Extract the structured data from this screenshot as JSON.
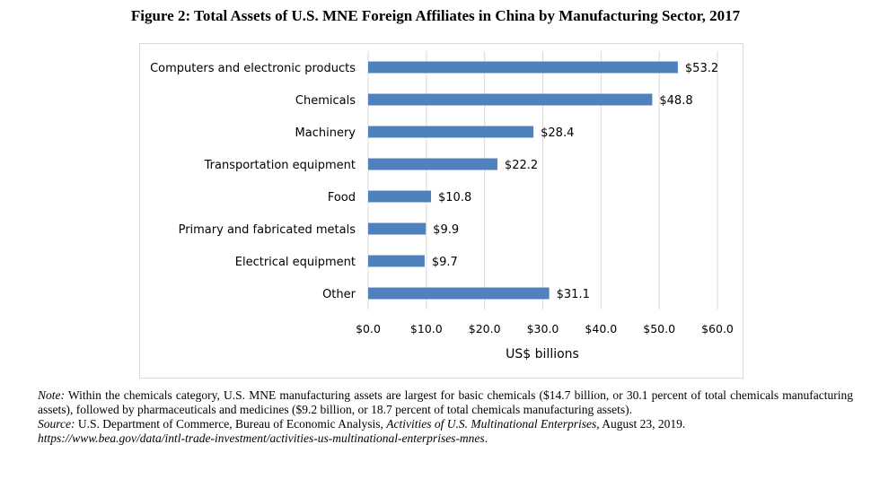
{
  "title": "Figure 2: Total Assets of U.S. MNE Foreign Affiliates in China by Manufacturing Sector, 2017",
  "chart_data": {
    "type": "bar",
    "orientation": "horizontal",
    "categories": [
      "Computers and electronic products",
      "Chemicals",
      "Machinery",
      "Transportation equipment",
      "Food",
      "Primary and fabricated metals",
      "Electrical equipment",
      "Other"
    ],
    "values": [
      53.2,
      48.8,
      28.4,
      22.2,
      10.8,
      9.9,
      9.7,
      31.1
    ],
    "value_labels": [
      "$53.2",
      "$48.8",
      "$28.4",
      "$22.2",
      "$10.8",
      "$9.9",
      "$9.7",
      "$31.1"
    ],
    "xlim": [
      0,
      60
    ],
    "x_ticks": [
      0,
      10,
      20,
      30,
      40,
      50,
      60
    ],
    "x_tick_labels": [
      "$0.0",
      "$10.0",
      "$20.0",
      "$30.0",
      "$40.0",
      "$50.0",
      "$60.0"
    ],
    "xlabel": "US$ billions",
    "ylabel": "",
    "grid": true,
    "bar_color": "#4f81bd",
    "grid_color": "#d9d9d9"
  },
  "note": {
    "label": "Note:",
    "text": " Within the chemicals category, U.S. MNE manufacturing assets are largest for basic chemicals ($14.7 billion, or 30.1 percent of total chemicals manufacturing assets), followed by pharmaceuticals and medicines ($9.2 billion, or 18.7 percent of total chemicals manufacturing assets)."
  },
  "source": {
    "label": "Source:",
    "text_before": " U.S. Department of Commerce, Bureau of Economic Analysis, ",
    "publication": "Activities of U.S. Multinational Enterprises",
    "text_after": ", August 23, 2019.",
    "url": "https://www.bea.gov/data/intl-trade-investment/activities-us-multinational-enterprises-mnes",
    "url_suffix": "."
  }
}
